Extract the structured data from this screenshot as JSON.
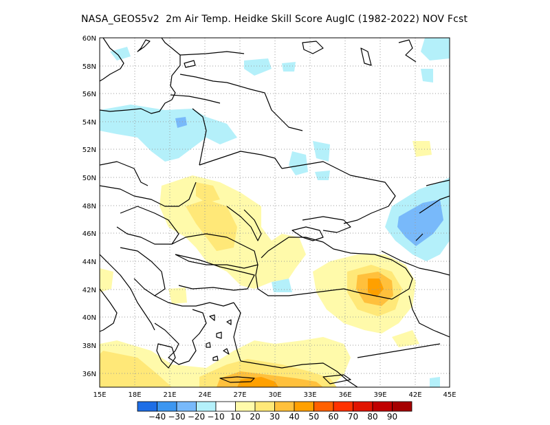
{
  "title": "NASA_GEOS5v2  2m Air Temp. Heidke Skill Score AugIC (1982-2022) NOV Fcst",
  "map": {
    "lon_range": [
      15,
      45
    ],
    "lat_range": [
      35,
      60
    ],
    "lat_labels": [
      "60N",
      "58N",
      "56N",
      "54N",
      "52N",
      "50N",
      "48N",
      "46N",
      "44N",
      "42N",
      "40N",
      "38N",
      "36N"
    ],
    "lon_labels": [
      "15E",
      "18E",
      "21E",
      "24E",
      "27E",
      "30E",
      "33E",
      "36E",
      "39E",
      "42E",
      "45E"
    ],
    "grid": "dotted"
  },
  "colorbar": {
    "colors": [
      "#1e6ee6",
      "#3c96f0",
      "#78b9fa",
      "#b4f0fa",
      "#ffffff",
      "#fffaaa",
      "#ffe878",
      "#ffc03c",
      "#ffa000",
      "#ff6000",
      "#ff3200",
      "#e11400",
      "#c00000",
      "#a50000"
    ],
    "labels": [
      "-40",
      "-30",
      "-20",
      "-10",
      "10",
      "20",
      "30",
      "40",
      "50",
      "60",
      "70",
      "80",
      "90"
    ]
  }
}
